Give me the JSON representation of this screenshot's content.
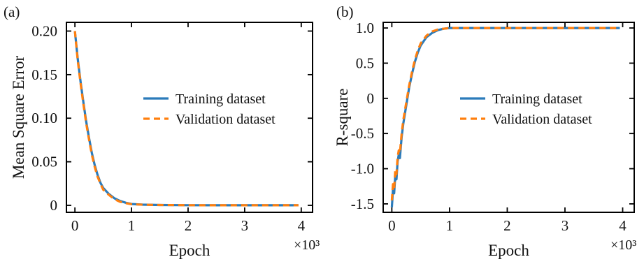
{
  "chart_data": [
    {
      "type": "line",
      "panel_label": "(a)",
      "title": "",
      "xlabel": "Epoch",
      "ylabel": "Mean Square Error",
      "x_multiplier": "×10³",
      "xlim": [
        -0.15,
        4.2
      ],
      "ylim": [
        -0.008,
        0.21
      ],
      "xticks": [
        0,
        1,
        2,
        3,
        4
      ],
      "xtick_labels": [
        "0",
        "1",
        "2",
        "3",
        "4"
      ],
      "yticks": [
        0,
        0.05,
        0.1,
        0.15,
        0.2
      ],
      "ytick_labels": [
        "0",
        "0.05",
        "0.10",
        "0.15",
        "0.20"
      ],
      "grid": false,
      "legend": "center-right",
      "series": [
        {
          "name": "Training dataset",
          "color": "#2b7bba",
          "style": "solid",
          "x": [
            0,
            0.05,
            0.1,
            0.15,
            0.2,
            0.25,
            0.3,
            0.35,
            0.4,
            0.45,
            0.5,
            0.6,
            0.7,
            0.8,
            0.9,
            1.0,
            1.2,
            1.5,
            2.0,
            2.5,
            3.0,
            3.5,
            3.95
          ],
          "y": [
            0.2,
            0.168,
            0.142,
            0.118,
            0.096,
            0.077,
            0.06,
            0.046,
            0.035,
            0.026,
            0.02,
            0.013,
            0.008,
            0.005,
            0.003,
            0.0015,
            0.0008,
            0.0004,
            0.0002,
            0.0001,
            0.0001,
            0.0001,
            0.0001
          ]
        },
        {
          "name": "Validation dataset",
          "color": "#ff7f0e",
          "style": "dashed",
          "x": [
            0,
            0.05,
            0.1,
            0.15,
            0.2,
            0.25,
            0.3,
            0.35,
            0.4,
            0.45,
            0.5,
            0.6,
            0.7,
            0.8,
            0.9,
            1.0,
            1.2,
            1.5,
            2.0,
            2.5,
            3.0,
            3.5,
            3.95
          ],
          "y": [
            0.2,
            0.166,
            0.14,
            0.116,
            0.094,
            0.075,
            0.058,
            0.044,
            0.033,
            0.025,
            0.018,
            0.012,
            0.007,
            0.004,
            0.0025,
            0.0013,
            0.0007,
            0.0004,
            0.0002,
            0.0001,
            0.0001,
            0.0001,
            0.0001
          ]
        }
      ]
    },
    {
      "type": "line",
      "panel_label": "(b)",
      "title": "",
      "xlabel": "Epoch",
      "ylabel": "R-square",
      "x_multiplier": "×10³",
      "xlim": [
        -0.15,
        4.2
      ],
      "ylim": [
        -1.62,
        1.08
      ],
      "xticks": [
        0,
        1,
        2,
        3,
        4
      ],
      "xtick_labels": [
        "0",
        "1",
        "2",
        "3",
        "4"
      ],
      "yticks": [
        -1.5,
        -1.0,
        -0.5,
        0,
        0.5,
        1.0
      ],
      "ytick_labels": [
        "-1.5",
        "-1.0",
        "-0.5",
        "0",
        "0.5",
        "1.0"
      ],
      "grid": false,
      "legend": "center-right",
      "series": [
        {
          "name": "Training dataset",
          "color": "#2b7bba",
          "style": "solid",
          "x": [
            0,
            0.02,
            0.04,
            0.06,
            0.08,
            0.1,
            0.12,
            0.14,
            0.17,
            0.2,
            0.25,
            0.3,
            0.35,
            0.4,
            0.45,
            0.5,
            0.6,
            0.7,
            0.8,
            0.9,
            1.0,
            1.2,
            1.5,
            2.0,
            3.0,
            3.95
          ],
          "y": [
            -1.55,
            -1.3,
            -1.35,
            -1.1,
            -1.15,
            -0.9,
            -0.8,
            -0.85,
            -0.55,
            -0.35,
            -0.1,
            0.15,
            0.35,
            0.52,
            0.65,
            0.75,
            0.87,
            0.93,
            0.97,
            0.99,
            1.0,
            1.0,
            1.0,
            1.0,
            1.0,
            1.0
          ]
        },
        {
          "name": "Validation dataset",
          "color": "#ff7f0e",
          "style": "dashed",
          "x": [
            0,
            0.02,
            0.04,
            0.06,
            0.08,
            0.1,
            0.12,
            0.14,
            0.17,
            0.2,
            0.25,
            0.3,
            0.35,
            0.4,
            0.45,
            0.5,
            0.6,
            0.7,
            0.8,
            0.9,
            1.0,
            1.2,
            1.5,
            2.0,
            3.0,
            3.95
          ],
          "y": [
            -1.45,
            -1.22,
            -1.28,
            -1.02,
            -1.08,
            -0.84,
            -0.74,
            -0.78,
            -0.5,
            -0.3,
            -0.06,
            0.18,
            0.38,
            0.55,
            0.68,
            0.78,
            0.89,
            0.95,
            0.98,
            0.99,
            1.0,
            1.0,
            1.0,
            1.0,
            1.0,
            1.0
          ]
        }
      ]
    }
  ]
}
